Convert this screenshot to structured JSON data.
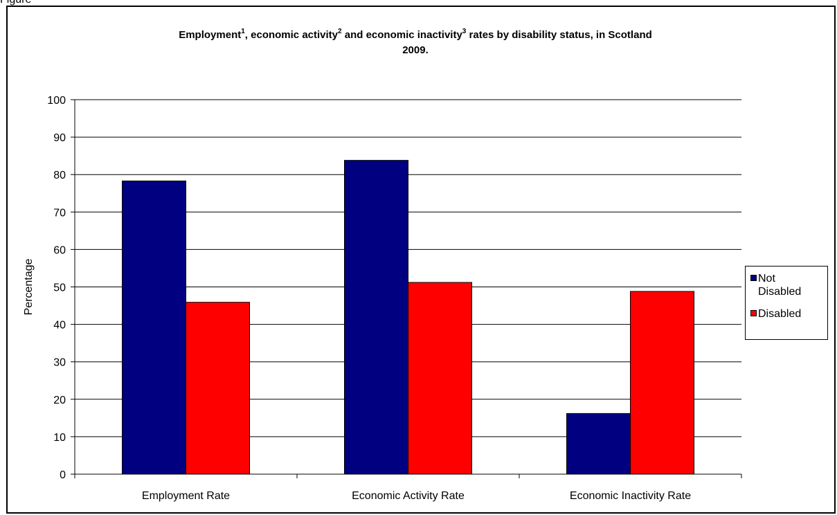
{
  "figure_label": "Figure",
  "chart_data": {
    "type": "bar",
    "title_parts": [
      {
        "text": "Employment",
        "sup": "1"
      },
      {
        "text": ", economic activity",
        "sup": "2"
      },
      {
        "text": " and economic inactivity",
        "sup": "3"
      },
      {
        "text": " rates by disability status, in Scotland",
        "sup": ""
      }
    ],
    "title_line2": "2009.",
    "categories": [
      "Employment Rate",
      "Economic Activity Rate",
      "Economic Inactivity Rate"
    ],
    "series": [
      {
        "name": "Not Disabled",
        "legend_lines": [
          "Not",
          "Disabled"
        ],
        "color": "#000080",
        "values": [
          78.3,
          83.8,
          16.2
        ]
      },
      {
        "name": "Disabled",
        "legend_lines": [
          "Disabled"
        ],
        "color": "#ff0000",
        "values": [
          45.9,
          51.2,
          48.8
        ]
      }
    ],
    "ylabel": "Percentage",
    "xlabel": "",
    "ylim": [
      0,
      100
    ],
    "ytick_step": 10,
    "yticks": [
      "0",
      "10",
      "20",
      "30",
      "40",
      "50",
      "60",
      "70",
      "80",
      "90",
      "100"
    ],
    "grid": true,
    "legend_position": "right"
  }
}
